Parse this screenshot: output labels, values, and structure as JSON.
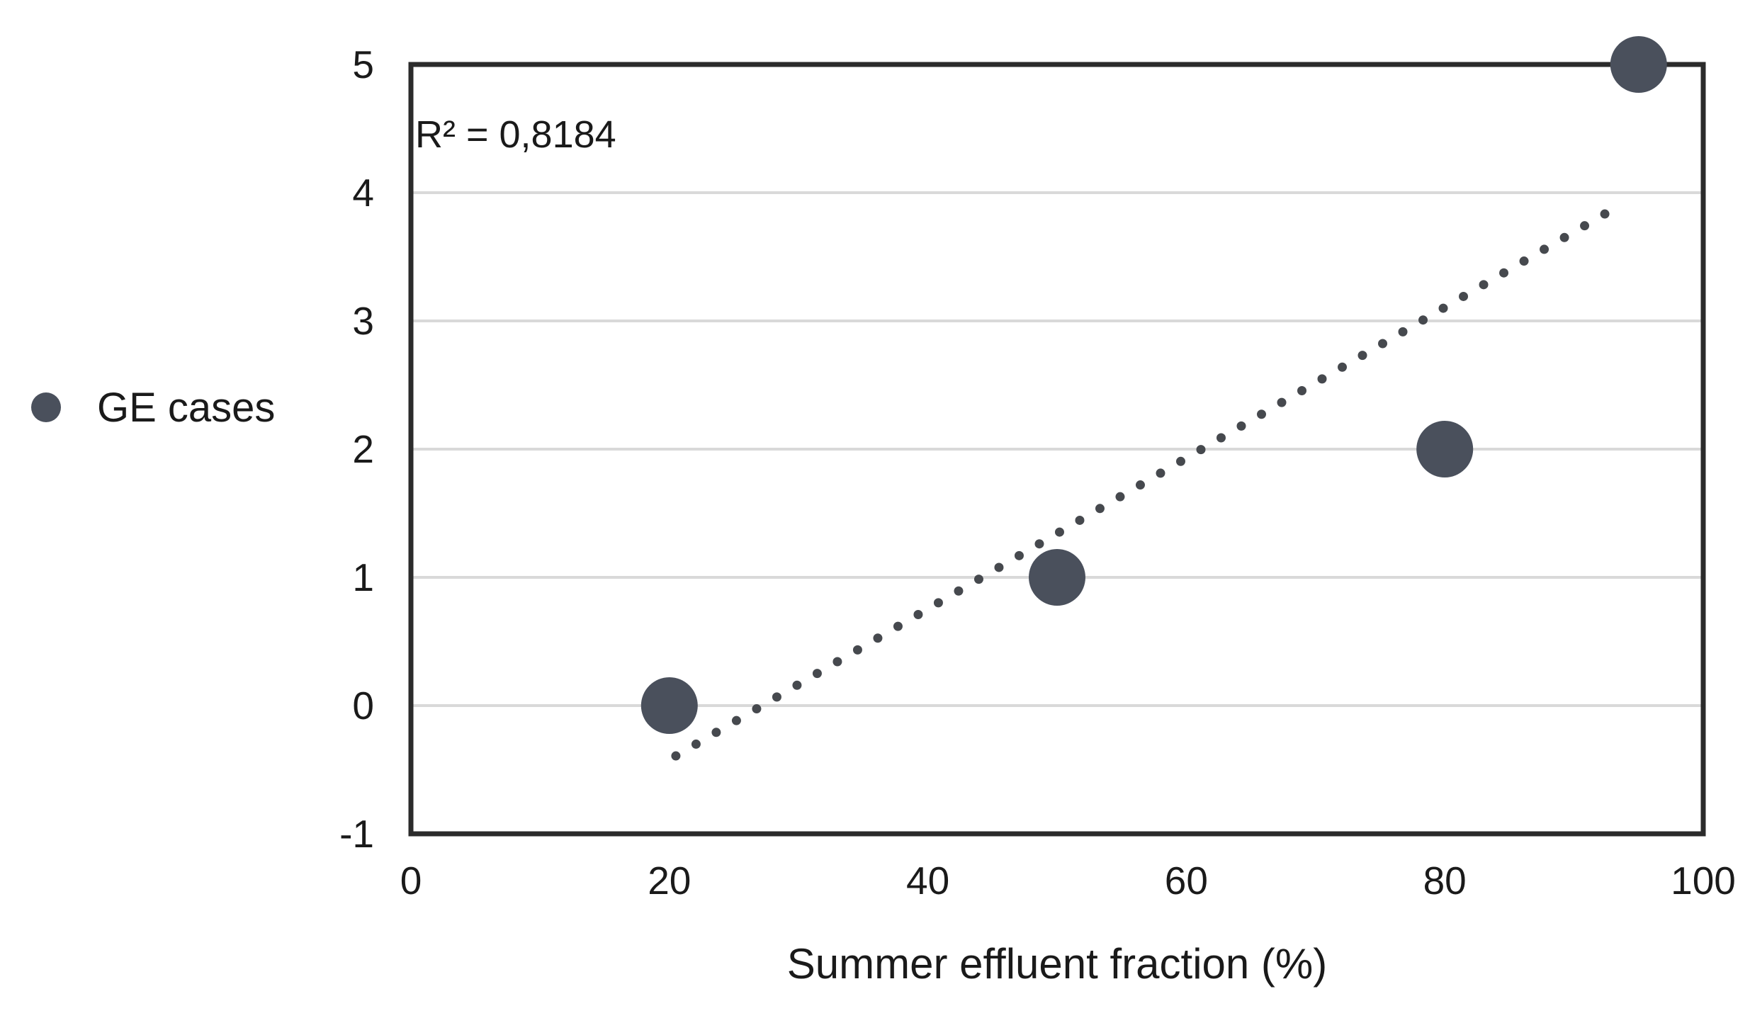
{
  "chart_data": {
    "type": "scatter",
    "title": "",
    "xlabel": "Summer effluent fraction (%)",
    "ylabel": "",
    "xlim": [
      0,
      100
    ],
    "ylim": [
      -1,
      5
    ],
    "x_ticks": [
      0,
      20,
      40,
      60,
      80,
      100
    ],
    "y_ticks": [
      -1,
      0,
      1,
      2,
      3,
      4,
      5
    ],
    "grid": "horizontal-gridlines-at-integer-y",
    "legend_position": "outside-left-middle",
    "series": [
      {
        "name": "GE cases",
        "points": [
          {
            "x": 20,
            "y": 0
          },
          {
            "x": 50,
            "y": 1
          },
          {
            "x": 80,
            "y": 2
          },
          {
            "x": 95,
            "y": 5
          }
        ]
      }
    ],
    "trendline": {
      "type": "linear",
      "style": "dotted",
      "slope": 0.0588,
      "intercept": -1.598,
      "x_start": 20.5,
      "x_end": 93
    },
    "annotations": [
      {
        "text": "R² = 0,8184"
      }
    ]
  },
  "colors": {
    "marker": "#4a505c",
    "trendline": "#46494e",
    "gridline": "#d9d9d9",
    "axis_border": "#2b2b2b",
    "text": "#1a1a1a",
    "background": "#ffffff"
  }
}
